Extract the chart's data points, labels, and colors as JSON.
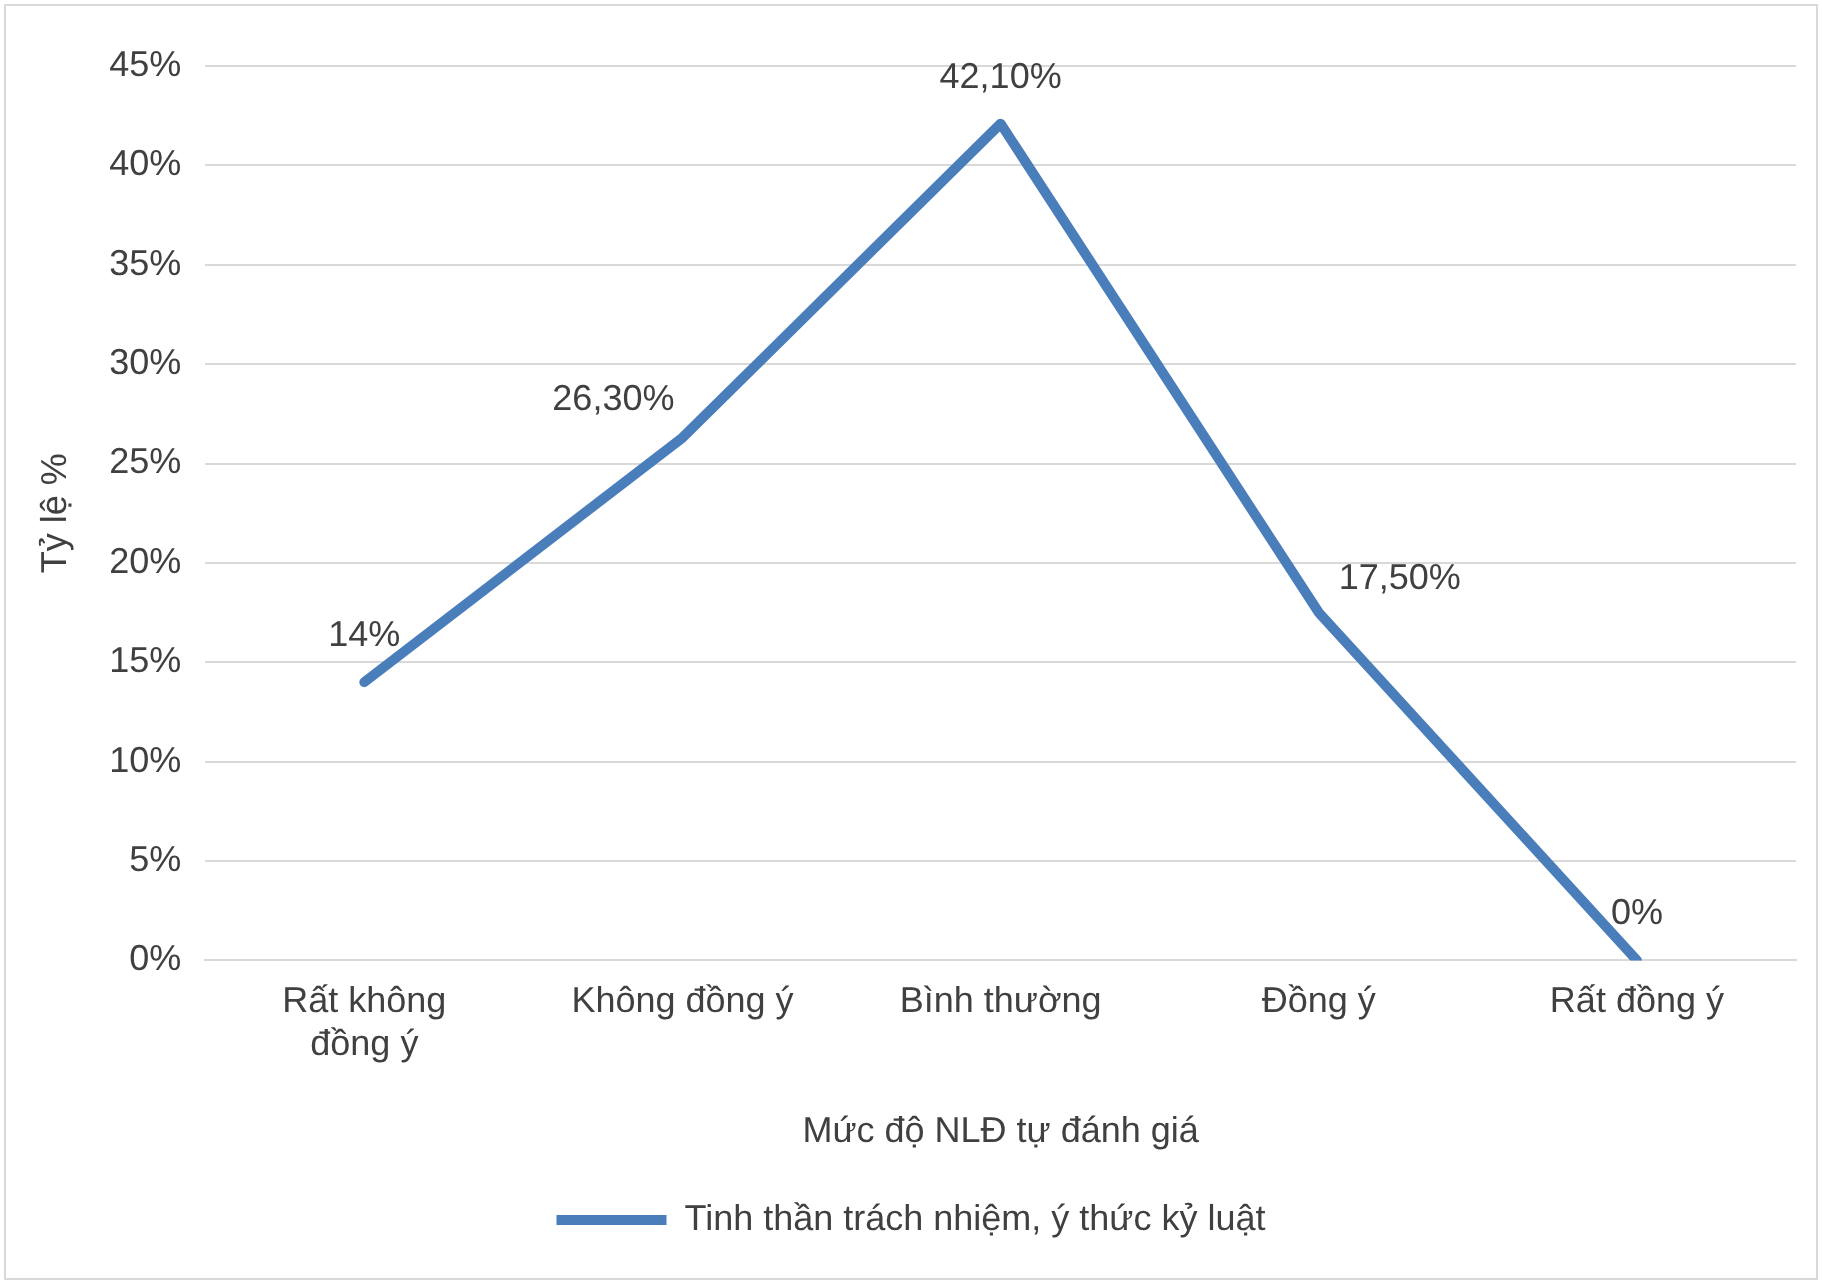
{
  "chart_data": {
    "type": "line",
    "xlabel": "Mức độ NLĐ tự đánh giá",
    "ylabel": "Tỷ lệ %",
    "categories": [
      "Rất không đồng ý",
      "Không đồng ý",
      "Bình thường",
      "Đồng ý",
      "Rất đồng ý"
    ],
    "series": [
      {
        "name": "Tinh thần trách nhiệm, ý thức kỷ luật",
        "color": "#4a7ebb",
        "values": [
          14,
          26.3,
          42.1,
          17.5,
          0
        ],
        "value_labels": [
          "14%",
          "26,30%",
          "42,10%",
          "17,50%",
          "0%"
        ]
      }
    ],
    "ylim": [
      0,
      45
    ],
    "yticks": [
      {
        "value": 0,
        "label": "0%"
      },
      {
        "value": 5,
        "label": "5%"
      },
      {
        "value": 10,
        "label": "10%"
      },
      {
        "value": 15,
        "label": "15%"
      },
      {
        "value": 20,
        "label": "20%"
      },
      {
        "value": 25,
        "label": "25%"
      },
      {
        "value": 30,
        "label": "30%"
      },
      {
        "value": 35,
        "label": "35%"
      },
      {
        "value": 40,
        "label": "40%"
      },
      {
        "value": 45,
        "label": "45%"
      }
    ],
    "grid": "y",
    "legend": "bottom",
    "marker": "none",
    "line_style": "solid"
  }
}
